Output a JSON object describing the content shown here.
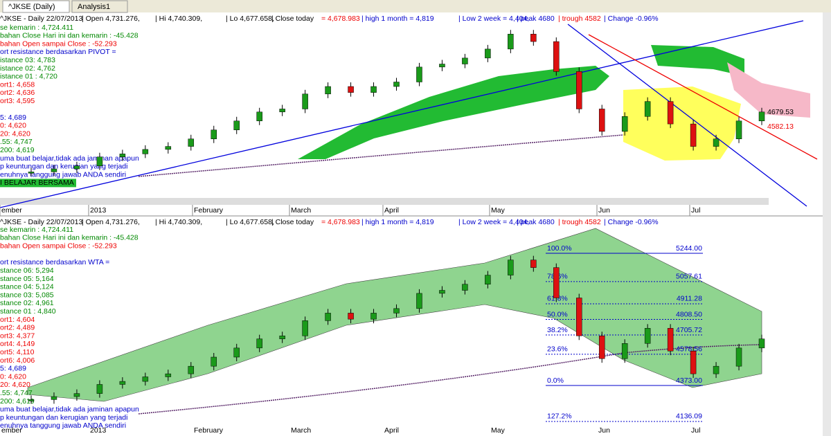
{
  "tabs": [
    "^JKSE (Daily)",
    "Analysis1"
  ],
  "header": [
    "^JKSE - Daily 22/07/2013",
    "| Open 4,731.276,",
    "| Hi 4,740.309,",
    "| Lo 4,677.658,",
    "| Close today",
    "= 4,678.983",
    "| high 1 month = 4,819",
    "| Low 2 week = 4,404,",
    "| peak 4680",
    "| trough 4582",
    "| Change -0.96%"
  ],
  "top_panel": {
    "lines": [
      "se kemarin : 4,724.411",
      "bahan Close Hari ini dan kemarin : -45.428",
      "bahan Open sampai Close : -52.293",
      "ort resistance berdasarkan PIVOT =",
      "istance 03: 4,783",
      "istance 02: 4,762",
      "istance 01 : 4,720",
      "ort1: 4,658",
      "ort2: 4,636",
      "ort3: 4,595",
      "5: 4,689",
      "0: 4,620",
      "20: 4,620",
      ".55: 4,747",
      "200: 4,619",
      "uma buat belajar,tidak ada jaminan apapun",
      "p keuntungan dan kerugian yang terjadi",
      "enuhnya tanggung jawab ANDA sendiri",
      "I BELAJAR BERSAMA"
    ],
    "price_tags": [
      "4679.53",
      "4582.13"
    ]
  },
  "bottom_panel": {
    "lines": [
      "se kemarin : 4,724.411",
      "bahan Close Hari ini dan kemarin : -45.428",
      "bahan Open sampai Close : -52.293",
      "ort resistance berdasarkan WTA =",
      "stance 06: 5,294",
      "stance 05: 5,164",
      "stance 04: 5,124",
      "stance 03: 5,085",
      "stance 02: 4,961",
      "stance 01 : 4,840",
      "ort1: 4,604",
      "ort2: 4,489",
      "ort3: 4,377",
      "ort4: 4,149",
      "ort5: 4,110",
      "ort6: 4,006",
      "5: 4,689",
      "0: 4,620",
      "20: 4,620",
      ".55: 4,747",
      "200: 4,619",
      "uma buat belajar,tidak ada jaminan apapun",
      "p keuntungan dan kerugian yang terjadi",
      "enuhnya tanggung jawab ANDA sendiri"
    ],
    "fib_levels": [
      "100.0%",
      "78.6%",
      "61.8%",
      "50.0%",
      "38.2%",
      "23.6%",
      "0.0%",
      "127.2%"
    ],
    "fib_values": [
      5244.0,
      5057.61,
      4911.28,
      4808.5,
      4705.72,
      4578.56,
      4373.0,
      4136.09
    ],
    "fib_value_labels": [
      "5244.00",
      "5057.61",
      "4911.28",
      "4808.50",
      "4705.72",
      "4578.56",
      "4373.00",
      "4136.09"
    ]
  },
  "x_labels": [
    "ember",
    "2013",
    "February",
    "March",
    "April",
    "May",
    "Jun",
    "Jul"
  ],
  "closes": [
    4280,
    4300,
    4320,
    4380,
    4400,
    4430,
    4450,
    4500,
    4560,
    4620,
    4680,
    4700,
    4800,
    4850,
    4810,
    4850,
    4880,
    4980,
    5000,
    5040,
    5100,
    5200,
    5150,
    4950,
    4700,
    4550,
    4650,
    4750,
    4600,
    4450,
    4500,
    4620,
    4680
  ]
}
